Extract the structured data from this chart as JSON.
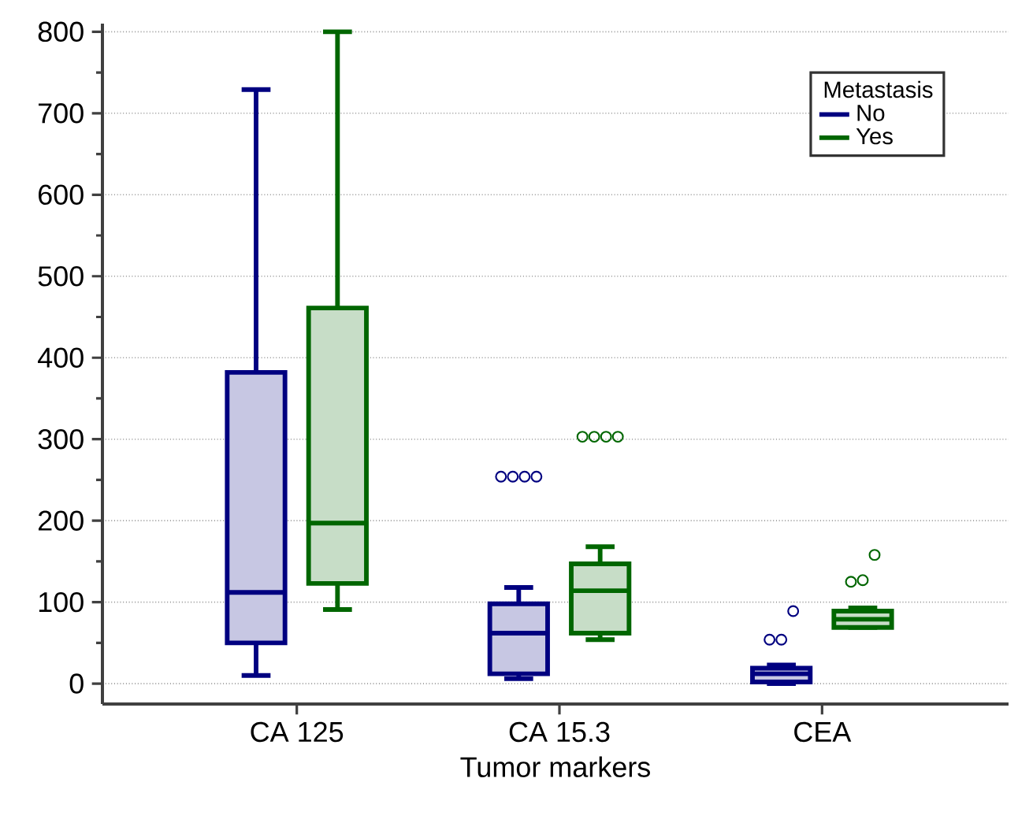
{
  "chart_data": {
    "type": "box",
    "xlabel": "Tumor markers",
    "legend_title": "Metastasis",
    "categories": [
      "CA 125",
      "CA 15.3",
      "CEA"
    ],
    "ylim": [
      -25,
      810
    ],
    "yticks": [
      0,
      100,
      200,
      300,
      400,
      500,
      600,
      700,
      800
    ],
    "grid": "y",
    "legend": "top right",
    "series": [
      {
        "name": "No",
        "color": "#000080",
        "boxes": [
          {
            "low": 10,
            "q1": 50,
            "median": 112,
            "q3": 382,
            "high": 729
          },
          {
            "low": 6,
            "q1": 12,
            "median": 62,
            "q3": 98,
            "high": 118,
            "outliers": [
              254,
              254,
              254,
              254
            ]
          },
          {
            "low": 0,
            "q1": 2,
            "median": 12,
            "q3": 19,
            "high": 23,
            "outliers": [
              54,
              54,
              89
            ]
          }
        ]
      },
      {
        "name": "Yes",
        "color": "#006600",
        "boxes": [
          {
            "low": 91,
            "q1": 123,
            "median": 197,
            "q3": 461,
            "high": 800
          },
          {
            "low": 54,
            "q1": 62,
            "median": 114,
            "q3": 147,
            "high": 168,
            "outliers": [
              303,
              303,
              303,
              303
            ]
          },
          {
            "low": 69,
            "q1": 69,
            "median": 79,
            "q3": 89,
            "high": 93,
            "outliers": [
              125,
              127,
              158
            ]
          }
        ]
      }
    ]
  }
}
